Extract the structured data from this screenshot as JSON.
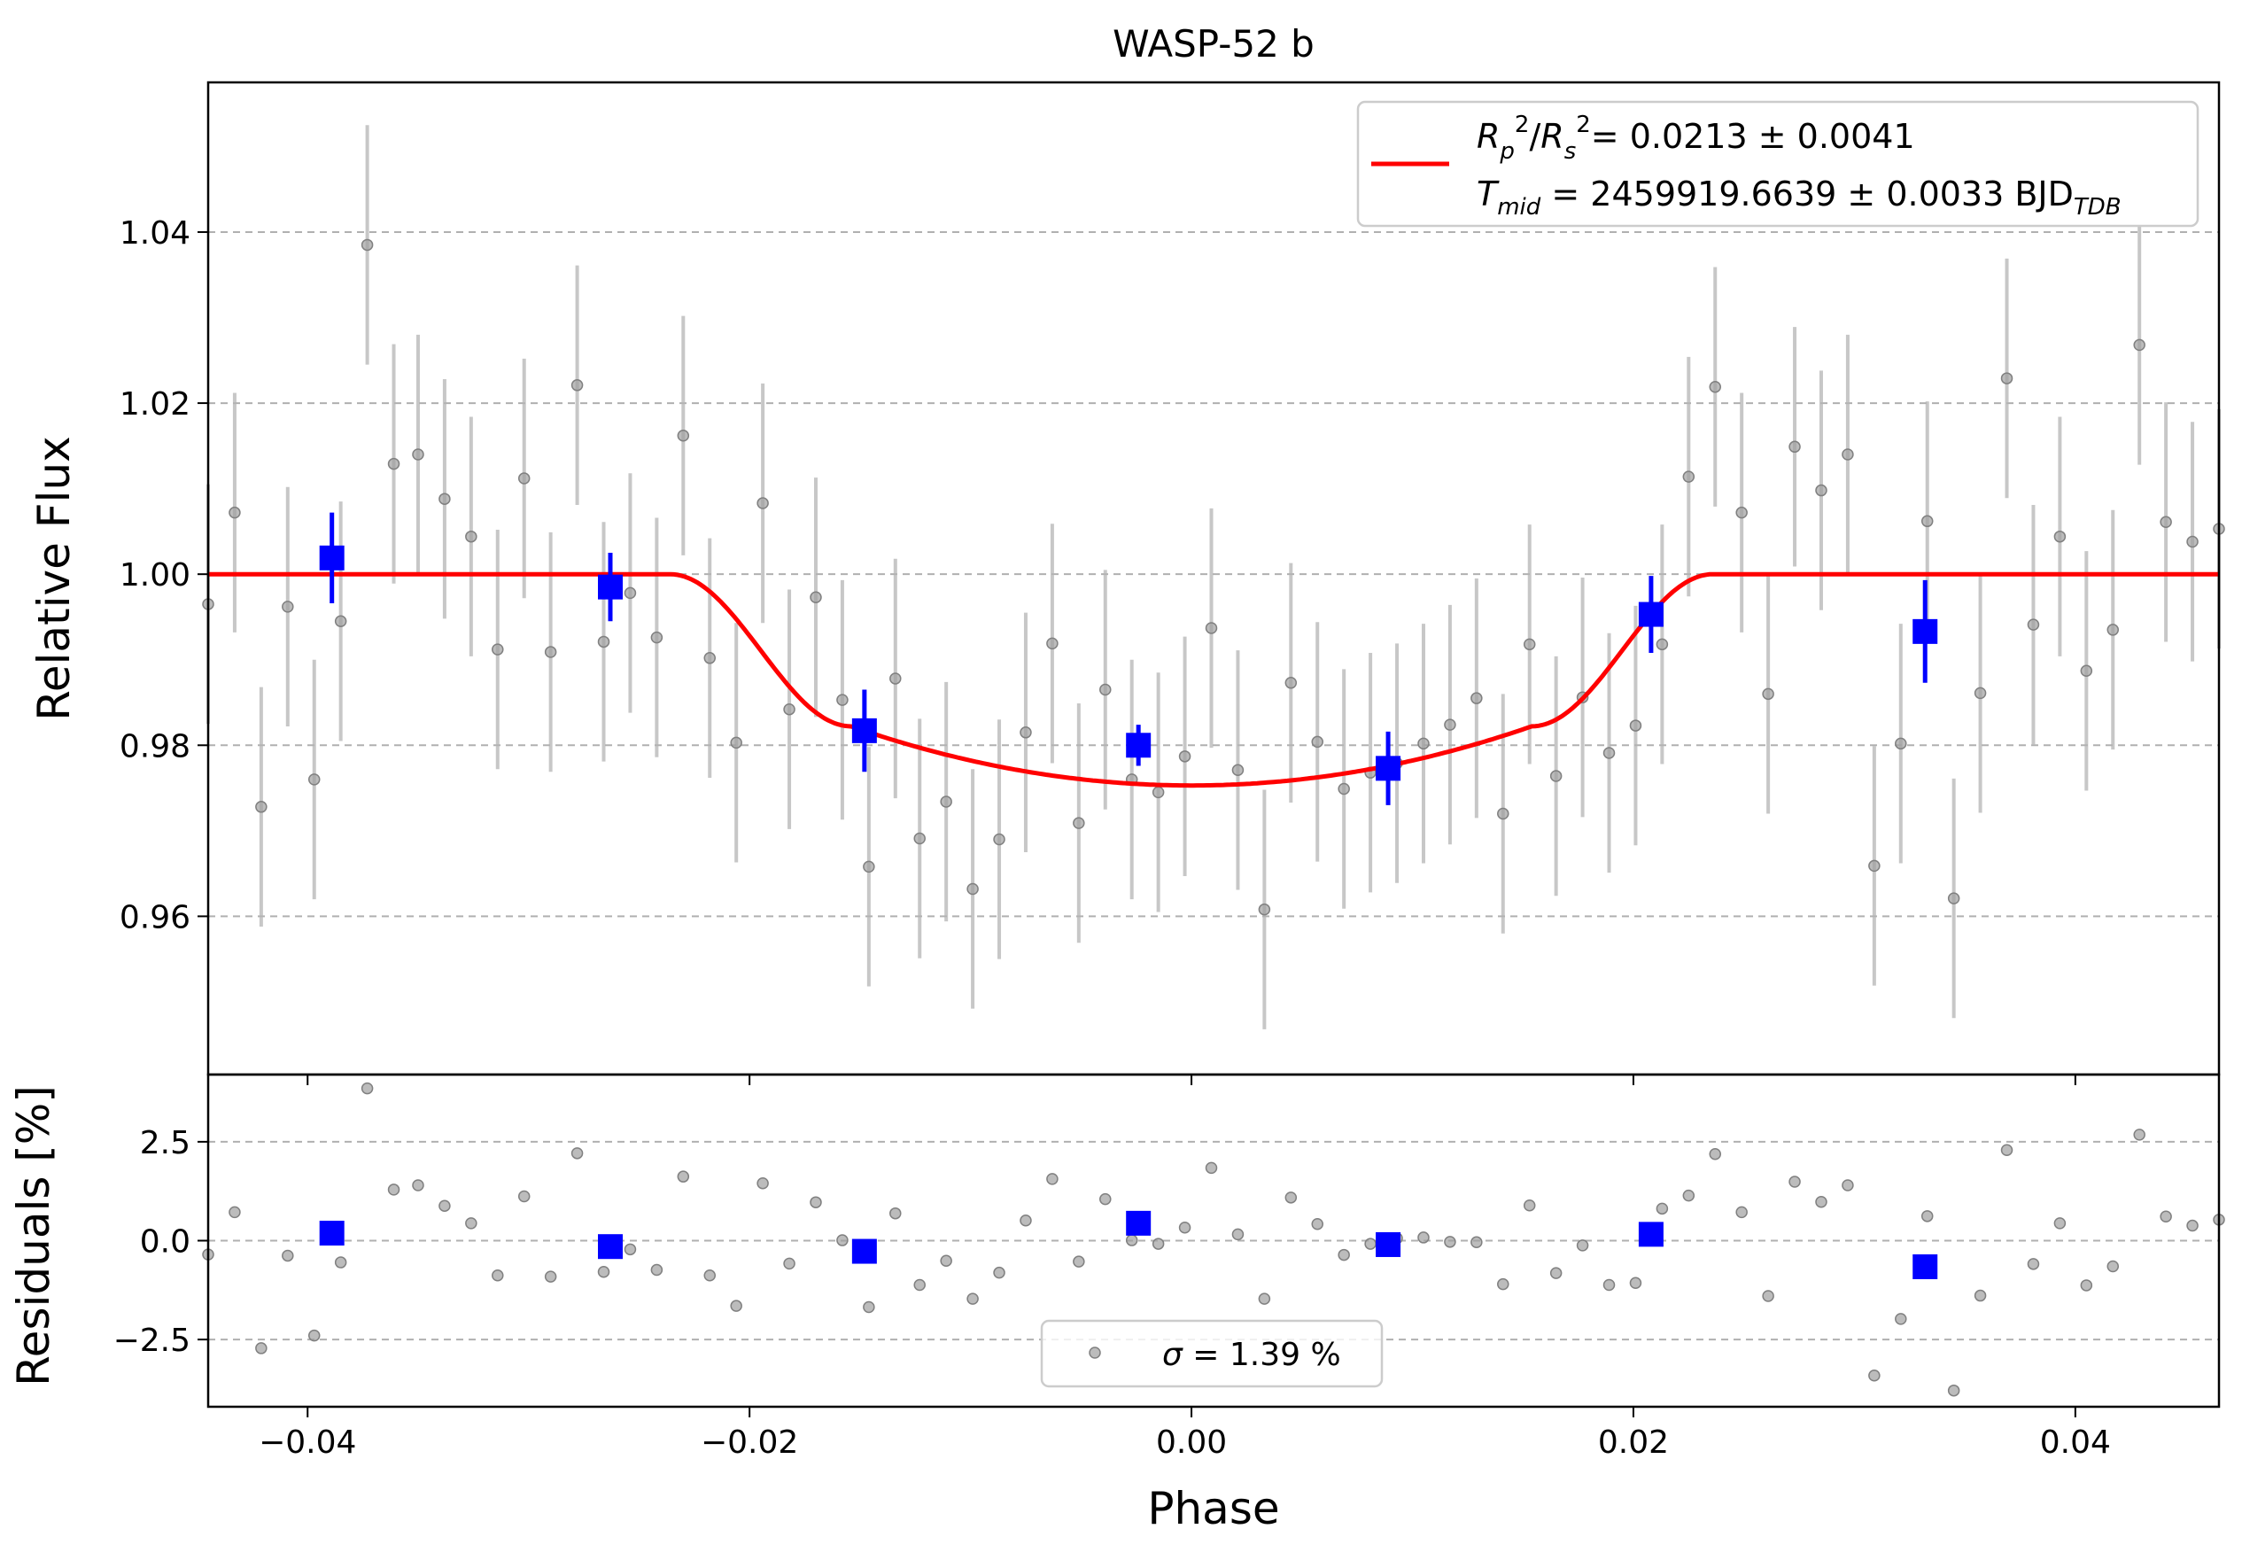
{
  "chart_data": [
    {
      "type": "scatter",
      "title": "WASP-52 b",
      "xlabel": "",
      "ylabel": "Relative Flux",
      "xlim": [
        -0.0445,
        0.0465
      ],
      "ylim": [
        0.9415,
        1.0575
      ],
      "x_ticks": [
        -0.04,
        -0.02,
        0.0,
        0.02,
        0.04
      ],
      "y_ticks": [
        0.96,
        0.98,
        1.0,
        1.02,
        1.04
      ],
      "y_tick_labels": [
        "0.96",
        "0.98",
        "1.00",
        "1.02",
        "1.04"
      ],
      "grid": "horizontal dashed",
      "legend": {
        "placement": "top-right",
        "line1": "= 0.0213 ± 0.0041",
        "line2": "= 2459919.6639 ± 0.0033 BJD"
      },
      "series": [
        {
          "kind": "data",
          "color": "#a0a0a0",
          "error": 0.014,
          "x": [
            -0.0445,
            -0.0433,
            -0.0421,
            -0.0409,
            -0.0397,
            -0.0385,
            -0.0373,
            -0.0361,
            -0.035,
            -0.0338,
            -0.0326,
            -0.0314,
            -0.0302,
            -0.029,
            -0.0278,
            -0.0266,
            -0.0254,
            -0.0242,
            -0.023,
            -0.0218,
            -0.0206,
            -0.0194,
            -0.0182,
            -0.017,
            -0.0158,
            -0.0146,
            -0.0134,
            -0.0123,
            -0.0111,
            -0.0099,
            -0.0087,
            -0.0075,
            -0.0063,
            -0.0051,
            -0.0039,
            -0.0027,
            -0.0015,
            -0.0003,
            0.0009,
            0.0021,
            0.0033,
            0.0045,
            0.0057,
            0.0069,
            0.0081,
            0.0093,
            0.0105,
            0.0117,
            0.0129,
            0.0141,
            0.0153,
            0.0165,
            0.0177,
            0.0189,
            0.0201,
            0.0213,
            0.0225,
            0.0237,
            0.0249,
            0.0261,
            0.0273,
            0.0285,
            0.0297,
            0.0309,
            0.0321,
            0.0333,
            0.0345,
            0.0357,
            0.0369,
            0.0381,
            0.0393,
            0.0405,
            0.0417,
            0.0429,
            0.0441,
            0.0453,
            0.0465
          ],
          "y": [
            0.9965,
            1.0072,
            0.9728,
            0.9962,
            0.976,
            0.9945,
            1.0385,
            1.0129,
            1.014,
            1.0088,
            1.0044,
            0.9912,
            1.0112,
            0.9909,
            1.0221,
            0.9921,
            0.9978,
            0.9926,
            1.0162,
            0.9902,
            0.9803,
            1.0083,
            0.9842,
            0.9973,
            0.9853,
            0.9658,
            0.9878,
            0.9691,
            0.9734,
            0.9632,
            0.969,
            0.9815,
            0.9919,
            0.9709,
            0.9865,
            0.976,
            0.9745,
            0.9787,
            0.9937,
            0.9771,
            0.9608,
            0.9873,
            0.9804,
            0.9749,
            0.9768,
            0.9779,
            0.9802,
            0.9824,
            0.9855,
            0.972,
            0.9918,
            0.9764,
            0.9856,
            0.9791,
            0.9823,
            0.9918,
            1.0114,
            1.0219,
            1.0072,
            0.986,
            1.0149,
            1.0098,
            1.014,
            0.9659,
            0.9802,
            1.0062,
            0.9621,
            0.9861,
            1.0229,
            0.9941,
            1.0044,
            0.9887,
            0.9935,
            1.0268,
            1.0061,
            1.0038,
            1.0053
          ]
        },
        {
          "kind": "binned",
          "color": "#0000ff",
          "x": [
            -0.0389,
            -0.0263,
            -0.0148,
            -0.0024,
            0.0089,
            0.0208,
            0.0332
          ],
          "y": [
            1.0019,
            0.9985,
            0.9817,
            0.98,
            0.9773,
            0.9953,
            0.9933
          ],
          "error": [
            0.0053,
            0.004,
            0.0048,
            0.0024,
            0.0043,
            0.0045,
            0.006
          ]
        },
        {
          "kind": "model",
          "color": "#ff0000",
          "depth": 0.0247,
          "t1": 0.0236,
          "t2": 0.0154
        }
      ]
    },
    {
      "type": "scatter",
      "title": "",
      "xlabel": "Phase",
      "ylabel": "Residuals [%]",
      "xlim": [
        -0.0445,
        0.0465
      ],
      "ylim": [
        -4.2,
        4.2
      ],
      "x_ticks": [
        -0.04,
        -0.02,
        0.0,
        0.02,
        0.04
      ],
      "x_tick_labels": [
        "−0.04",
        "−0.02",
        "0.00",
        "0.02",
        "0.04"
      ],
      "y_ticks": [
        -2.5,
        0.0,
        2.5
      ],
      "y_tick_labels": [
        "−2.5",
        "0.0",
        "2.5"
      ],
      "grid": "horizontal dashed",
      "legend": {
        "placement": "lower-center",
        "label": "= 1.39 %"
      },
      "series": [
        {
          "kind": "residuals",
          "color": "#a0a0a0",
          "y": [
            -0.35,
            0.72,
            -2.72,
            -0.38,
            -2.4,
            -0.55,
            3.85,
            1.29,
            1.4,
            0.88,
            0.44,
            -0.88,
            1.12,
            -0.91,
            2.21,
            -0.79,
            -0.22,
            -0.74,
            1.62,
            -0.88,
            -1.65,
            1.45,
            -0.58,
            0.97,
            0.01,
            -1.68,
            0.69,
            -1.12,
            -0.51,
            -1.47,
            -0.81,
            0.51,
            1.56,
            -0.53,
            1.05,
            0.01,
            -0.08,
            0.33,
            1.84,
            0.16,
            -1.47,
            1.09,
            0.42,
            -0.36,
            -0.08,
            0.06,
            0.08,
            -0.03,
            -0.04,
            -1.1,
            0.89,
            -0.82,
            -0.12,
            -1.12,
            -1.07,
            0.81,
            1.14,
            2.19,
            0.72,
            -1.4,
            1.49,
            0.98,
            1.4,
            -3.41,
            -1.98,
            0.62,
            -3.79,
            -1.39,
            2.29,
            -0.59,
            0.44,
            -1.13,
            -0.65,
            2.68,
            0.61,
            0.38,
            0.53
          ]
        },
        {
          "kind": "binned",
          "color": "#0000ff",
          "x": [
            -0.0389,
            -0.0263,
            -0.0148,
            -0.0024,
            0.0089,
            0.0208,
            0.0332
          ],
          "y": [
            0.19,
            -0.15,
            -0.27,
            0.44,
            -0.1,
            0.16,
            -0.66
          ]
        }
      ]
    }
  ]
}
